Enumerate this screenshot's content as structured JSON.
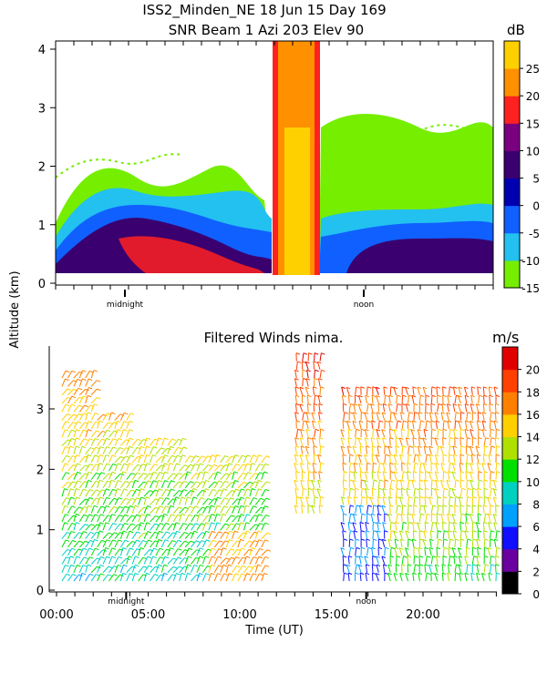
{
  "title_line1": "ISS2_Minden_NE   18 Jun 15 Day 169",
  "shared_ylabel": "Altitude (km)",
  "colors": {
    "snr_scale": [
      "#76ee00",
      "#22c1f0",
      "#1060ff",
      "#0000b0",
      "#3a0070",
      "#7a0080",
      "#ff2020",
      "#ff9000",
      "#ffd000"
    ],
    "wind_scale": [
      "#000000",
      "#6a00a0",
      "#1010ff",
      "#00a0ff",
      "#00d0c0",
      "#00e000",
      "#b0e000",
      "#ffd000",
      "#ff8000",
      "#ff4000",
      "#e00000"
    ]
  },
  "chart_data": [
    {
      "type": "heatmap",
      "title": "SNR Beam 1 Azi 203 Elev 90",
      "units": "dB",
      "x_range_hours": [
        0,
        24
      ],
      "ylim": [
        0,
        4.2
      ],
      "y_ticks": [
        "0",
        "1",
        "2",
        "3",
        "4"
      ],
      "colorbar_ticks": [
        "25",
        "20",
        "15",
        "10",
        "5",
        "0",
        "-5",
        "-10",
        "-15"
      ],
      "colorbar_values": [
        25,
        20,
        15,
        10,
        5,
        0,
        -5,
        -10,
        -15
      ],
      "markers": [
        "midnight",
        "noon"
      ],
      "marker_hours": [
        3.8,
        16.9
      ]
    },
    {
      "type": "scatter",
      "title": "Filtered Winds nima.",
      "units": "m/s",
      "x_range_hours": [
        0,
        24
      ],
      "ylim": [
        0,
        4
      ],
      "y_ticks": [
        "0",
        "1",
        "2",
        "3"
      ],
      "x_ticks": [
        "00:00",
        "05:00",
        "10:00",
        "15:00",
        "20:00"
      ],
      "x_tick_hours": [
        0,
        5,
        10,
        15,
        20
      ],
      "xlabel": "Time (UT)",
      "colorbar_ticks": [
        "20",
        "18",
        "16",
        "14",
        "12",
        "10",
        "8",
        "6",
        "4",
        "2",
        "0"
      ],
      "colorbar_values": [
        20,
        18,
        16,
        14,
        12,
        10,
        8,
        6,
        4,
        2,
        0
      ],
      "markers": [
        "midnight",
        "noon"
      ],
      "marker_hours": [
        3.8,
        16.9
      ]
    }
  ]
}
